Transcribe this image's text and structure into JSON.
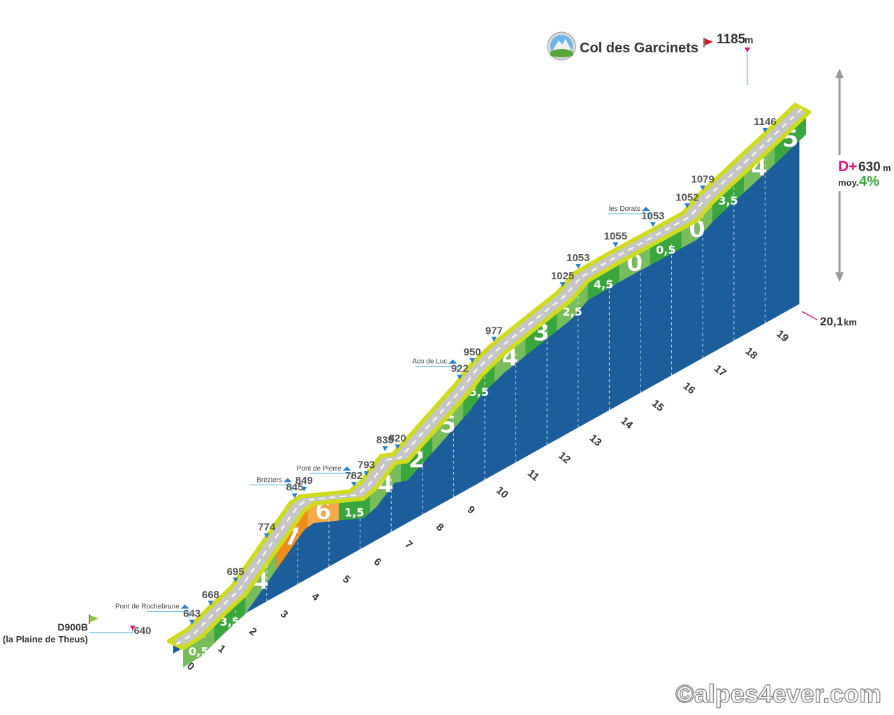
{
  "colors": {
    "road": "#c6c6c6",
    "road_edge": "#cfdc1e",
    "wall": "#1b5e9b",
    "green_dark": "#3aa63e",
    "green_light": "#78bd5c",
    "orange": "#f08c1a",
    "orange_light": "#f6aa45",
    "marker": "#2f7fcf",
    "flag_start": "#8cc63f",
    "flag_end": "#e0161f",
    "accent_pink": "#e0127c",
    "text_dark": "#333333"
  },
  "summit": {
    "name": "Col des Garcinets",
    "altitude": "1185",
    "unit": "m"
  },
  "start": {
    "road": "D900B",
    "place": "(la Plaine de Theus)",
    "altitude": "640"
  },
  "stats": {
    "dplus_label": "D+",
    "dplus_value": "630",
    "dplus_unit": "m",
    "avg_label": "moy.",
    "avg_value": "4%"
  },
  "total_distance": {
    "value": "20,1",
    "unit": "km"
  },
  "watermark": "©alpes4ever.com",
  "chart_data": {
    "type": "area",
    "title": "Col des Garcinets",
    "x_unit": "km",
    "xlim": [
      0,
      20.1
    ],
    "x_ticks": [
      "0",
      "1",
      "2",
      "3",
      "4",
      "5",
      "6",
      "7",
      "8",
      "9",
      "10",
      "11",
      "12",
      "13",
      "14",
      "15",
      "16",
      "17",
      "18",
      "19"
    ],
    "segment_gradients": [
      {
        "km": 0,
        "gradient": "0,5",
        "color": "green_light"
      },
      {
        "km": 1,
        "gradient": "3,5",
        "color": "green_dark"
      },
      {
        "km": 2,
        "gradient": "4",
        "color": "green_light"
      },
      {
        "km": 3,
        "gradient": "7",
        "color": "orange"
      },
      {
        "km": 4,
        "gradient": "6",
        "color": "orange_light"
      },
      {
        "km": 5,
        "gradient": "1,5",
        "color": "green_dark"
      },
      {
        "km": 6,
        "gradient": "4",
        "color": "green_light"
      },
      {
        "km": 7,
        "gradient": "2",
        "color": "green_dark"
      },
      {
        "km": 8,
        "gradient": "5",
        "color": "green_light"
      },
      {
        "km": 9,
        "gradient": "5,5",
        "color": "green_dark"
      },
      {
        "km": 10,
        "gradient": "4",
        "color": "green_light"
      },
      {
        "km": 11,
        "gradient": "3",
        "color": "green_dark"
      },
      {
        "km": 12,
        "gradient": "2,5",
        "color": "green_light"
      },
      {
        "km": 13,
        "gradient": "4,5",
        "color": "green_dark"
      },
      {
        "km": 14,
        "gradient": "0",
        "color": "green_light"
      },
      {
        "km": 15,
        "gradient": "0,5",
        "color": "green_dark"
      },
      {
        "km": 16,
        "gradient": "0",
        "color": "green_light"
      },
      {
        "km": 17,
        "gradient": "3,5",
        "color": "green_dark"
      },
      {
        "km": 18,
        "gradient": "4",
        "color": "green_light"
      },
      {
        "km": 19,
        "gradient": "5",
        "color": "green_dark"
      }
    ],
    "altitude_points": [
      {
        "km": 0,
        "alt": 640,
        "label": "640"
      },
      {
        "km": 0.6,
        "alt": 643,
        "label": "643"
      },
      {
        "km": 1.2,
        "alt": 668,
        "label": "668"
      },
      {
        "km": 2,
        "alt": 695,
        "label": "695"
      },
      {
        "km": 3,
        "alt": 774,
        "label": "774"
      },
      {
        "km": 3.9,
        "alt": 845,
        "label": "845"
      },
      {
        "km": 4.2,
        "alt": 849,
        "label": "849"
      },
      {
        "km": 5.8,
        "alt": 782,
        "label": "782"
      },
      {
        "km": 6.2,
        "alt": 793,
        "label": "793"
      },
      {
        "km": 6.8,
        "alt": 835,
        "label": "835"
      },
      {
        "km": 7.2,
        "alt": 820,
        "label": "820"
      },
      {
        "km": 9.2,
        "alt": 922,
        "label": "922"
      },
      {
        "km": 9.6,
        "alt": 950,
        "label": "950"
      },
      {
        "km": 10.3,
        "alt": 977,
        "label": "977"
      },
      {
        "km": 12.5,
        "alt": 1025,
        "label": "1025"
      },
      {
        "km": 13,
        "alt": 1053,
        "label": "1053"
      },
      {
        "km": 14.2,
        "alt": 1055,
        "label": "1055"
      },
      {
        "km": 15.4,
        "alt": 1053,
        "label": "1053"
      },
      {
        "km": 16.5,
        "alt": 1052,
        "label": "1052"
      },
      {
        "km": 17,
        "alt": 1079,
        "label": "1079"
      },
      {
        "km": 19,
        "alt": 1146,
        "label": "1146"
      },
      {
        "km": 20.1,
        "alt": 1185,
        "label": "1185"
      }
    ],
    "places": [
      {
        "name": "Pont de Rochebrune",
        "km": 0.6
      },
      {
        "name": "Bréziers",
        "km": 3.9
      },
      {
        "name": "Pont de Pierre",
        "km": 5.8
      },
      {
        "name": "Aco de Luc",
        "km": 9.2
      },
      {
        "name": "les Dorats",
        "km": 15.4
      }
    ]
  }
}
